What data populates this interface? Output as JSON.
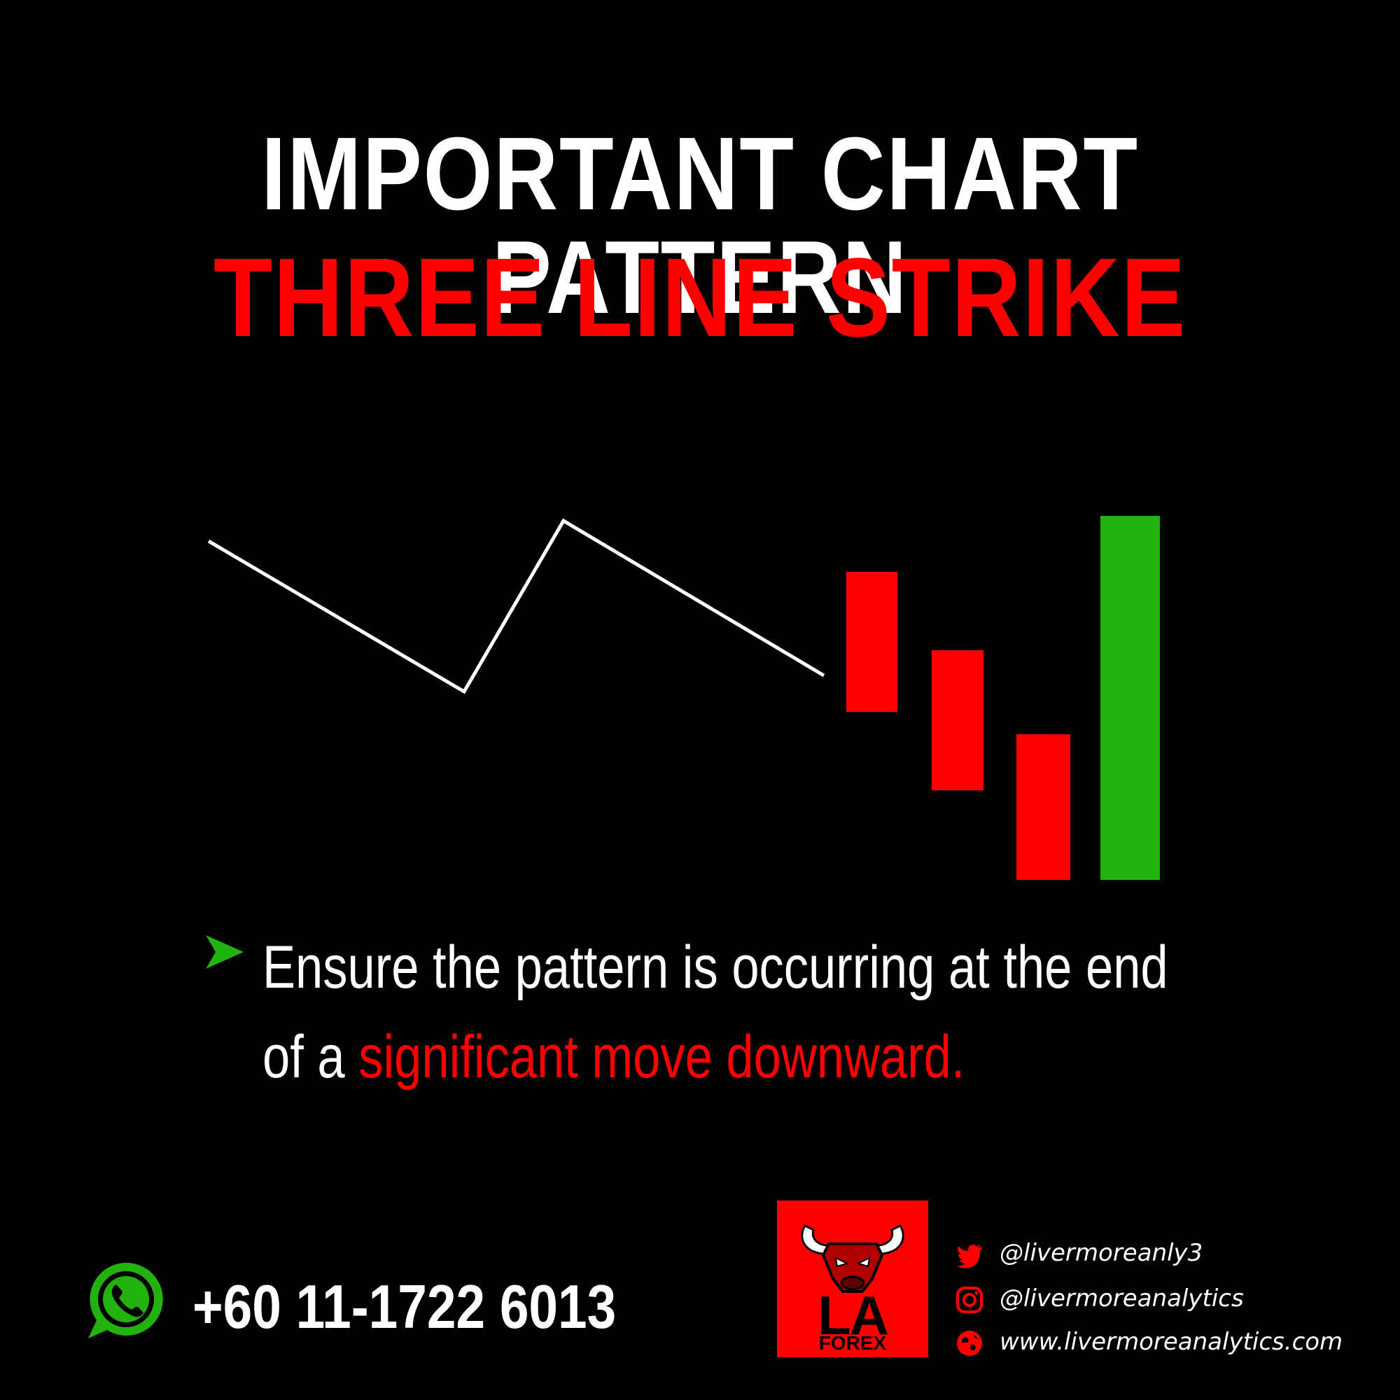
{
  "title": {
    "main": "IMPORTANT CHART PATTERN",
    "sub": "THREE LINE STRIKE"
  },
  "colors": {
    "background": "#000000",
    "accent_red": "#ff0000",
    "bullish_green": "#22b20e",
    "text_white": "#ffffff"
  },
  "diagram": {
    "trend_line": "white-zigzag-downtrend",
    "candles": [
      {
        "color": "red",
        "open": 5.75,
        "close": 4.5
      },
      {
        "color": "red",
        "open": 5.05,
        "close": 3.8
      },
      {
        "color": "red",
        "open": 4.3,
        "close": 3.0
      },
      {
        "color": "green",
        "open": 3.0,
        "close": 6.25
      }
    ]
  },
  "bullet": {
    "icon": "green-arrow-icon",
    "line1": "Ensure the pattern is occurring at the end",
    "line2_prefix": "of a ",
    "line2_highlight": "significant move downward."
  },
  "contact": {
    "whatsapp_icon": "whatsapp-icon",
    "phone": "+60 11-1722 6013"
  },
  "logo": {
    "letters": "LA",
    "subtitle": "FOREX",
    "icon": "bull-head-icon"
  },
  "social": [
    {
      "icon": "twitter-icon",
      "text": "@livermoreanly3"
    },
    {
      "icon": "instagram-icon",
      "text": "@livermoreanalytics"
    },
    {
      "icon": "globe-icon",
      "text": "www.livermoreanalytics.com"
    }
  ]
}
